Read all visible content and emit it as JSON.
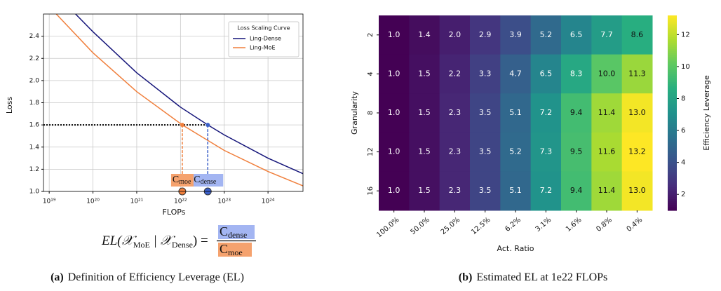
{
  "chart_data": [
    {
      "type": "line",
      "xscale": "log",
      "xlabel": "FLOPs",
      "ylabel": "Loss",
      "xlim": [
        7.4e+18,
        6.3e+24
      ],
      "ylim": [
        1.0,
        2.6
      ],
      "xticks": [
        {
          "value": 1e+19,
          "label": "10¹⁹"
        },
        {
          "value": 1e+20,
          "label": "10²⁰"
        },
        {
          "value": 1e+21,
          "label": "10²¹"
        },
        {
          "value": 1e+22,
          "label": "10²²"
        },
        {
          "value": 1e+23,
          "label": "10²³"
        },
        {
          "value": 1e+24,
          "label": "10²⁴"
        }
      ],
      "yticks": [
        {
          "value": 1,
          "label": "1.0"
        },
        1.2,
        1.4,
        1.6,
        1.8,
        {
          "value": 2,
          "label": "2.0"
        },
        2.2,
        2.4
      ],
      "grid": true,
      "legend": {
        "title": "Loss Scaling Curve",
        "loc": "upper right"
      },
      "reference_line": 1.6,
      "series": [
        {
          "name": "Ling-Dense",
          "color": "#15157a",
          "x": [
            4e+19,
            1e+20,
            1e+21,
            1e+22,
            4.2e+22,
            1e+23,
            1e+24,
            6.3e+24
          ],
          "values": [
            2.6,
            2.44,
            2.07,
            1.76,
            1.6,
            1.51,
            1.3,
            1.16
          ],
          "annotation": {
            "text": "C",
            "sub": "dense",
            "color": "#a3b5f2",
            "marker": "#3a5fc8"
          }
        },
        {
          "name": "Ling-MoE",
          "color": "#f07f3c",
          "x": [
            1.45e+19,
            1e+20,
            1e+21,
            1.1e+22,
            1e+23,
            1e+24,
            6.3e+24
          ],
          "values": [
            2.6,
            2.25,
            1.9,
            1.6,
            1.37,
            1.18,
            1.05
          ],
          "annotation": {
            "text": "C",
            "sub": "moe",
            "color": "#f5a26e",
            "marker": "#f07f3c"
          }
        }
      ],
      "formula": {
        "lhs": "EL(𝒳",
        "sub1": "MoE",
        "mid": " | 𝒳",
        "sub2": "Dense",
        "rhs": ") ="
      },
      "caption_tag": "(a)",
      "caption": "Definition of Efficiency Leverage (EL)"
    },
    {
      "type": "heatmap",
      "xlabel": "Act. Ratio",
      "ylabel": "Granularity",
      "x_categories": [
        "100.0%",
        "50.0%",
        "25.0%",
        "12.5%",
        "6.2%",
        "3.1%",
        "1.6%",
        "0.8%",
        "0.4%"
      ],
      "y_categories": [
        "2",
        "4",
        "8",
        "12",
        "16"
      ],
      "values": [
        [
          1.0,
          1.4,
          2.0,
          2.9,
          3.9,
          5.2,
          6.5,
          7.7,
          8.6
        ],
        [
          1.0,
          1.5,
          2.2,
          3.3,
          4.7,
          6.5,
          8.3,
          10.0,
          11.3
        ],
        [
          1.0,
          1.5,
          2.3,
          3.5,
          5.1,
          7.2,
          9.4,
          11.4,
          13.0
        ],
        [
          1.0,
          1.5,
          2.3,
          3.5,
          5.2,
          7.3,
          9.5,
          11.6,
          13.2
        ],
        [
          1.0,
          1.5,
          2.3,
          3.5,
          5.1,
          7.2,
          9.4,
          11.4,
          13.0
        ]
      ],
      "value_labels": [
        [
          "1.0",
          "1.4",
          "2.0",
          "2.9",
          "3.9",
          "5.2",
          "6.5",
          "7.7",
          "8.6"
        ],
        [
          "1.0",
          "1.5",
          "2.2",
          "3.3",
          "4.7",
          "6.5",
          "8.3",
          "10.0",
          "11.3"
        ],
        [
          "1.0",
          "1.5",
          "2.3",
          "3.5",
          "5.1",
          "7.2",
          "9.4",
          "11.4",
          "13.0"
        ],
        [
          "1.0",
          "1.5",
          "2.3",
          "3.5",
          "5.2",
          "7.3",
          "9.5",
          "11.6",
          "13.2"
        ],
        [
          "1.0",
          "1.5",
          "2.3",
          "3.5",
          "5.1",
          "7.2",
          "9.4",
          "11.4",
          "13.0"
        ]
      ],
      "colormap": "viridis",
      "clim": [
        1.0,
        13.2
      ],
      "colorbar": {
        "label": "Efficiency Leverage",
        "ticks": [
          2,
          4,
          6,
          8,
          10,
          12
        ]
      },
      "caption_tag": "(b)",
      "caption": "Estimated EL at 1e22 FLOPs"
    }
  ]
}
